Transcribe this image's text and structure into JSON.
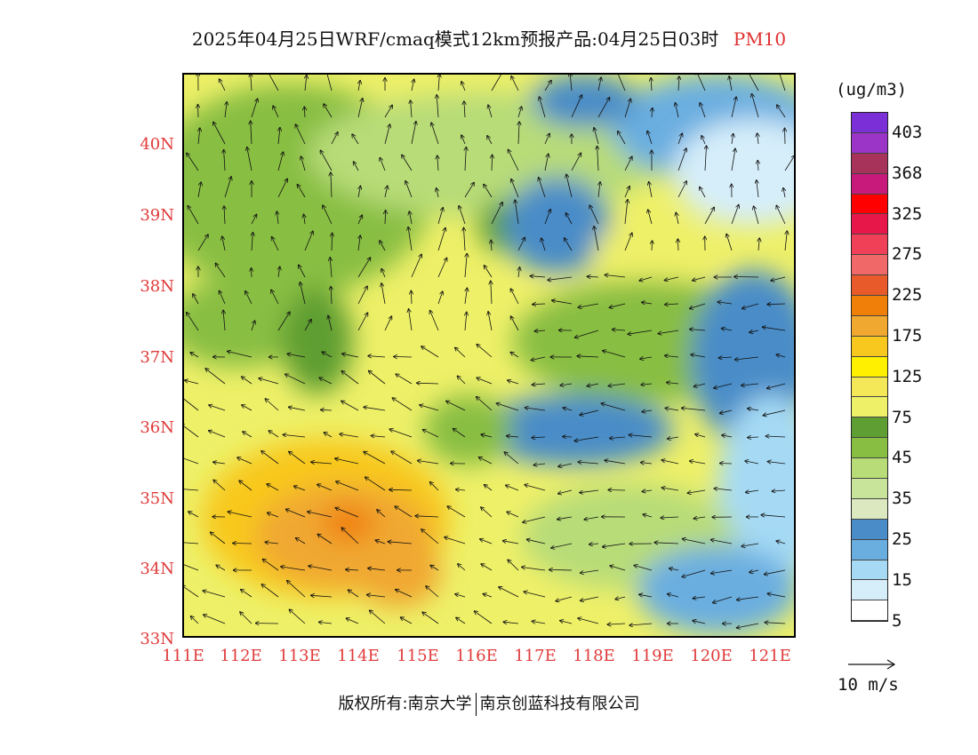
{
  "title": {
    "text": "2025年04月25日WRF/cmaq模式12km预报产品:04月25日03时",
    "variable": "PM10"
  },
  "map": {
    "lat_labels": [
      "40N",
      "39N",
      "38N",
      "37N",
      "36N",
      "35N",
      "34N",
      "33N"
    ],
    "lon_labels": [
      "111E",
      "112E",
      "113E",
      "114E",
      "115E",
      "116E",
      "117E",
      "118E",
      "119E",
      "120E",
      "121E"
    ],
    "lat_range": [
      33,
      41
    ],
    "lon_range": [
      111,
      121.5
    ],
    "field": "PM10 concentration with 10m wind vectors"
  },
  "legend": {
    "unit": "(ug/m3)",
    "ticks": [
      "403",
      "368",
      "325",
      "275",
      "225",
      "175",
      "125",
      "75",
      "45",
      "35",
      "25",
      "15",
      "5"
    ],
    "colors": [
      "#7b2fd6",
      "#9a35c8",
      "#a8335a",
      "#c81a7a",
      "#ff0000",
      "#e8174a",
      "#f04058",
      "#f06868",
      "#e85a2a",
      "#f07f0a",
      "#f0a830",
      "#f8c81e",
      "#fff000",
      "#f5e858",
      "#eef068",
      "#5e9e32",
      "#88be42",
      "#b8dc78",
      "#c8e49a",
      "#dce8c0",
      "#4a8cc8",
      "#6aaee0",
      "#a6daf4",
      "#d6eefa",
      "#ffffff"
    ],
    "colors_note": "top to bottom"
  },
  "wind_scale": {
    "label": "10 m/s"
  },
  "footer": {
    "copyright_left": "版权所有:南京大学",
    "copyright_right": "南京创蓝科技有限公司"
  }
}
